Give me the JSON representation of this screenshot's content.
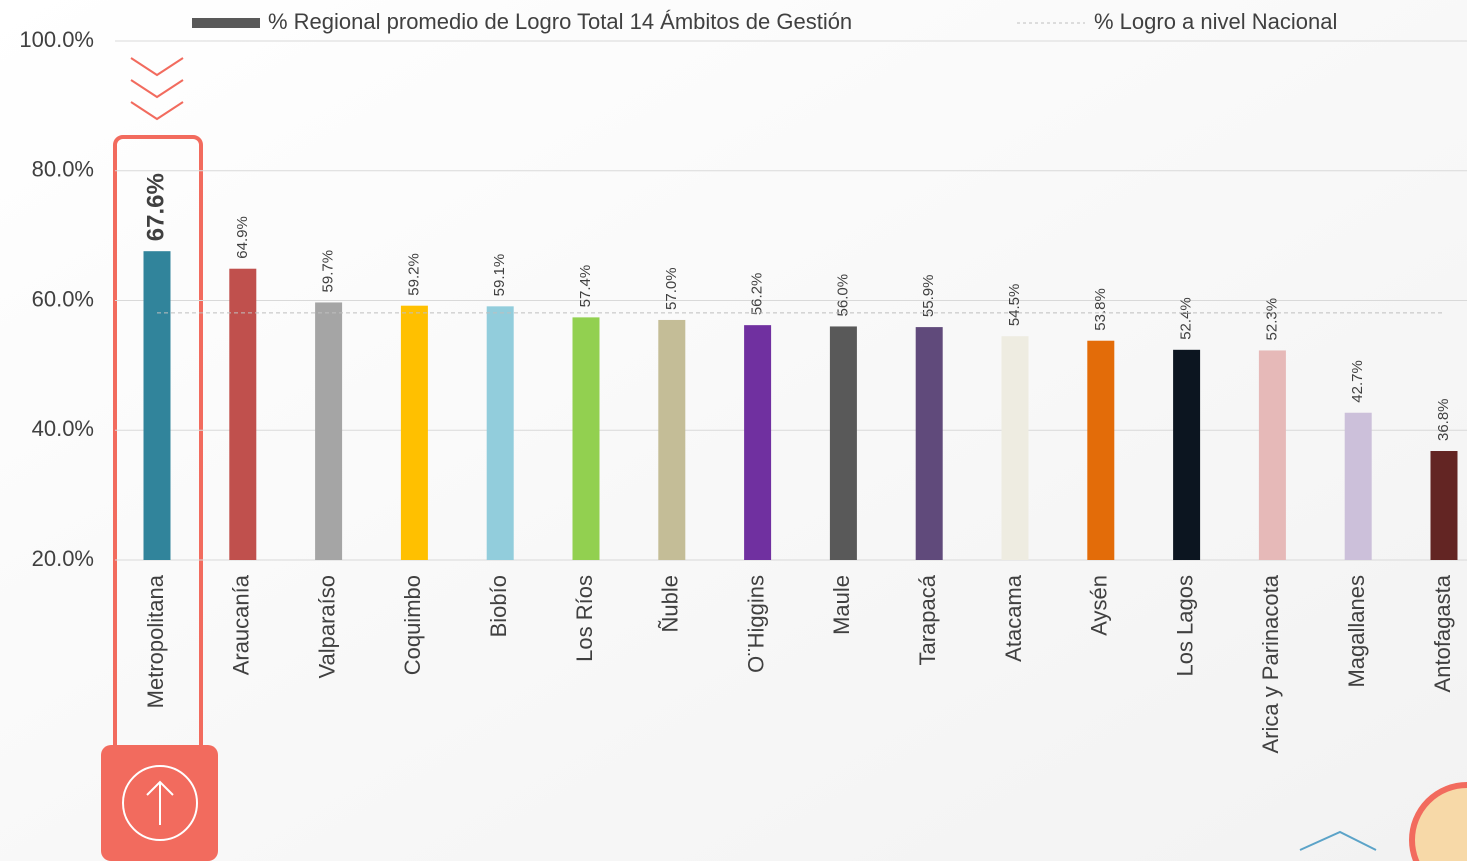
{
  "chart_data": {
    "type": "bar",
    "categories": [
      "Metropolitana",
      "Araucanía",
      "Valparaíso",
      "Coquimbo",
      "Biobío",
      "Los Ríos",
      "Ñuble",
      "O¨Higgins",
      "Maule",
      "Tarapacá",
      "Atacama",
      "Aysén",
      "Los Lagos",
      "Arica y Parinacota",
      "Magallanes",
      "Antofagasta"
    ],
    "series": [
      {
        "name": "% Regional promedio de Logro Total 14 Ámbitos de Gestión",
        "color": "#595959",
        "colors": [
          "#31849b",
          "#c0504d",
          "#a5a5a5",
          "#ffc000",
          "#92cddc",
          "#92d050",
          "#c4bd97",
          "#7030a0",
          "#595959",
          "#604a7b",
          "#eeece1",
          "#e36c09",
          "#0c1520",
          "#e6b9b8",
          "#ccc0da",
          "#632523"
        ],
        "values": [
          67.6,
          64.9,
          59.7,
          59.2,
          59.1,
          57.4,
          57.0,
          56.2,
          56.0,
          55.9,
          54.5,
          53.8,
          52.4,
          52.3,
          42.7,
          36.8
        ],
        "value_labels": [
          "67.6%",
          "64.9%",
          "59.7%",
          "59.2%",
          "59.1%",
          "57.4%",
          "57.0%",
          "56.2%",
          "56.0%",
          "55.9%",
          "54.5%",
          "53.8%",
          "52.4%",
          "52.3%",
          "42.7%",
          "36.8%"
        ]
      }
    ],
    "reference_line": {
      "name": "% Logro a nivel Nacional",
      "value": 58.1,
      "color": "#bfbfbf"
    },
    "ylim": [
      20,
      100
    ],
    "yticks": [
      {
        "value": 20,
        "label": "20.0%"
      },
      {
        "value": 40,
        "label": "40.0%"
      },
      {
        "value": 60,
        "label": "60.0%"
      },
      {
        "value": 80,
        "label": "80.0%"
      },
      {
        "value": 100,
        "label": "100.0%"
      }
    ],
    "grid": true,
    "highlight_index": 0
  }
}
